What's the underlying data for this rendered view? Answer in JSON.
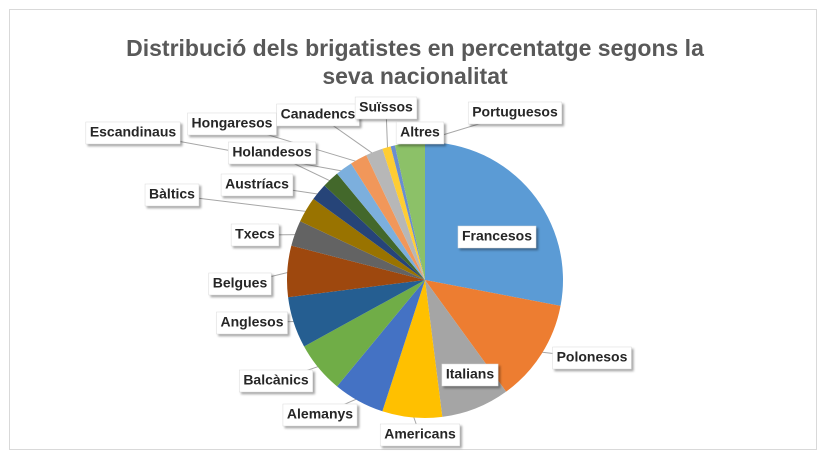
{
  "chart_data": {
    "type": "pie",
    "title": "Distribució dels brigatistes en percentatge segons la seva nacionalitat",
    "categories": [
      "Francesos",
      "Polonesos",
      "Italians",
      "Americans",
      "Alemanys",
      "Balcànics",
      "Anglesos",
      "Belgues",
      "Txecs",
      "Bàltics",
      "Austríacs",
      "Holandesos",
      "Escandinaus",
      "Hongaresos",
      "Canadencs",
      "Suïssos",
      "Portuguesos",
      "Altres"
    ],
    "values": [
      28,
      12,
      8,
      7,
      6,
      6,
      6,
      6,
      3,
      3,
      2,
      2,
      2,
      2,
      2,
      1,
      0.5,
      3.5
    ],
    "colors": [
      "#5b9bd5",
      "#ed7d31",
      "#a5a5a5",
      "#ffc000",
      "#4472c4",
      "#70ad47",
      "#255e91",
      "#9e480e",
      "#636363",
      "#997300",
      "#264478",
      "#43682b",
      "#7cafdd",
      "#f1975a",
      "#b7b7b7",
      "#ffcd33",
      "#698ed0",
      "#8cc168"
    ]
  }
}
